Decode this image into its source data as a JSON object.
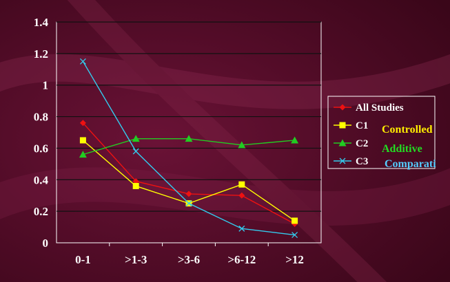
{
  "chart_data": {
    "type": "line",
    "categories": [
      "0-1",
      ">1-3",
      ">3-6",
      ">6-12",
      ">12"
    ],
    "ylim": [
      0,
      1.4
    ],
    "yticks": [
      "0",
      "0.2",
      "0.4",
      "0.6",
      "0.8",
      "1",
      "1.2",
      "1.4"
    ],
    "grid": true,
    "legend_position": "right",
    "series": [
      {
        "name": "All Studies",
        "values": [
          0.76,
          0.39,
          0.31,
          0.3,
          0.12
        ],
        "color": "#ee1111",
        "marker": "diamond"
      },
      {
        "name": "C1",
        "values": [
          0.65,
          0.36,
          0.25,
          0.37,
          0.14
        ],
        "color": "#ffff00",
        "marker": "square"
      },
      {
        "name": "C2",
        "values": [
          0.56,
          0.66,
          0.66,
          0.62,
          0.65
        ],
        "color": "#22cc22",
        "marker": "triangle"
      },
      {
        "name": "C3",
        "values": [
          1.15,
          0.58,
          0.25,
          0.09,
          0.05
        ],
        "color": "#33ccee",
        "marker": "x"
      }
    ],
    "annotations": [
      {
        "text": "Controlled",
        "color": "#ffee00"
      },
      {
        "text": "Additive",
        "color": "#22dd22"
      },
      {
        "text": "Comparati",
        "color": "#55ccff"
      }
    ]
  }
}
